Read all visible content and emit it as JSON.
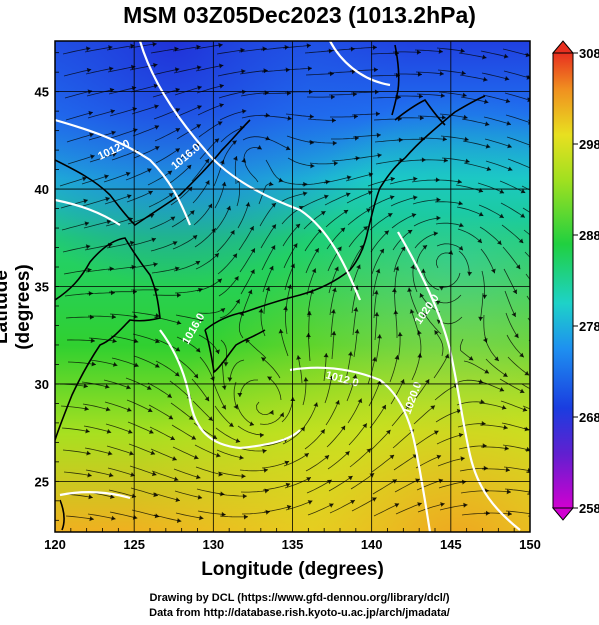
{
  "title": "MSM 03Z05Dec2023 (1013.2hPa)",
  "chart_data": {
    "type": "heatmap",
    "xlabel": "Longitude (degrees)",
    "ylabel": "Latitude  (degrees)",
    "xlim": [
      120,
      150
    ],
    "ylim": [
      22.4,
      47.6
    ],
    "x_ticks": [
      "120",
      "125",
      "130",
      "135",
      "140",
      "145",
      "150"
    ],
    "y_ticks": [
      "25",
      "30",
      "35",
      "40",
      "45"
    ],
    "colorbar": {
      "min": 258,
      "max": 308,
      "ticks": [
        "308",
        "298",
        "288",
        "278",
        "268",
        "258"
      ]
    },
    "contour_labels": [
      "1012.0",
      "1016.0",
      "1016.0",
      "1012.0",
      "1020.0",
      "1020.0"
    ],
    "colors": {
      "cold": "#1a3de0",
      "cool": "#1ed2c8",
      "mid": "#20d040",
      "warm": "#c8e020",
      "hot": "#f0a020",
      "contour": "#ffffff",
      "coast": "#000000"
    }
  },
  "credits": {
    "line1": "Drawing by DCL (https://www.gfd-dennou.org/library/dcl/)",
    "line2": "Data from http://database.rish.kyoto-u.ac.jp/arch/jmadata/"
  }
}
